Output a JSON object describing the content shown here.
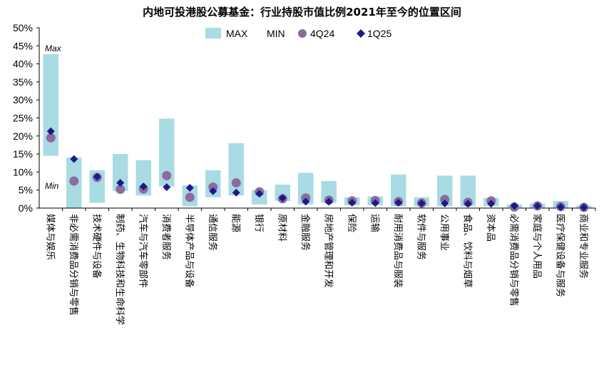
{
  "chart_data": {
    "type": "range-scatter",
    "title": "内地可投港股公募基金：行业持股市值比例2021年至今的位置区间",
    "y_ticks": [
      "0%",
      "5%",
      "10%",
      "15%",
      "20%",
      "25%",
      "30%",
      "35%",
      "40%",
      "45%",
      "50%"
    ],
    "ylim": [
      0,
      50
    ],
    "legend": {
      "max": "MAX",
      "min": "MIN",
      "s4q24": "4Q24",
      "s1q25": "1Q25"
    },
    "annotations": {
      "max": "Max",
      "min": "Min"
    },
    "colors": {
      "bar": "#a9dbe4",
      "q4": "#8e6a9e",
      "q1": "#1a1a8c",
      "axis": "#000000"
    },
    "categories": [
      "媒体与娱乐",
      "非必需消费品分销与零售",
      "技术硬件与设备",
      "制药、生物科技和生命科学",
      "汽车与汽车零部件",
      "消费者服务",
      "半导体产品与设备",
      "通信服务",
      "能源",
      "银行",
      "原材料",
      "金融服务",
      "房地产管理和开发",
      "保险",
      "运输",
      "耐用消费品与服装",
      "软件与服务",
      "公用事业",
      "食品、饮料与烟草",
      "资本品",
      "必需消费品分销与零售",
      "家庭与个人用品",
      "医疗保健设备与服务",
      "商业和专业服务"
    ],
    "series": [
      {
        "name": "MAX",
        "values": [
          42.7,
          14.0,
          10.5,
          15.0,
          13.3,
          24.8,
          6.3,
          10.5,
          18.0,
          5.0,
          6.5,
          9.8,
          7.5,
          3.0,
          3.2,
          9.3,
          3.0,
          9.0,
          9.0,
          2.8,
          1.0,
          1.3,
          2.0,
          0.7
        ]
      },
      {
        "name": "MIN",
        "values": [
          14.5,
          0.0,
          1.5,
          4.7,
          3.5,
          6.0,
          0.5,
          3.0,
          3.5,
          1.0,
          2.0,
          1.0,
          1.5,
          0.8,
          0.8,
          0.5,
          0.5,
          0.5,
          0.5,
          0.5,
          0.0,
          0.0,
          0.0,
          0.0
        ]
      },
      {
        "name": "4Q24",
        "values": [
          19.5,
          7.5,
          8.5,
          5.2,
          5.3,
          9.0,
          3.0,
          5.8,
          7.0,
          4.5,
          2.6,
          2.8,
          2.2,
          2.0,
          2.1,
          1.8,
          1.4,
          2.4,
          1.6,
          2.0,
          0.3,
          0.6,
          0.4,
          0.2
        ]
      },
      {
        "name": "1Q25",
        "values": [
          21.3,
          13.6,
          8.7,
          7.0,
          6.0,
          5.8,
          5.6,
          4.7,
          4.3,
          4.0,
          2.8,
          1.8,
          1.8,
          1.5,
          1.4,
          1.5,
          1.3,
          1.3,
          1.2,
          1.2,
          0.6,
          0.6,
          0.3,
          0.2
        ]
      }
    ]
  }
}
